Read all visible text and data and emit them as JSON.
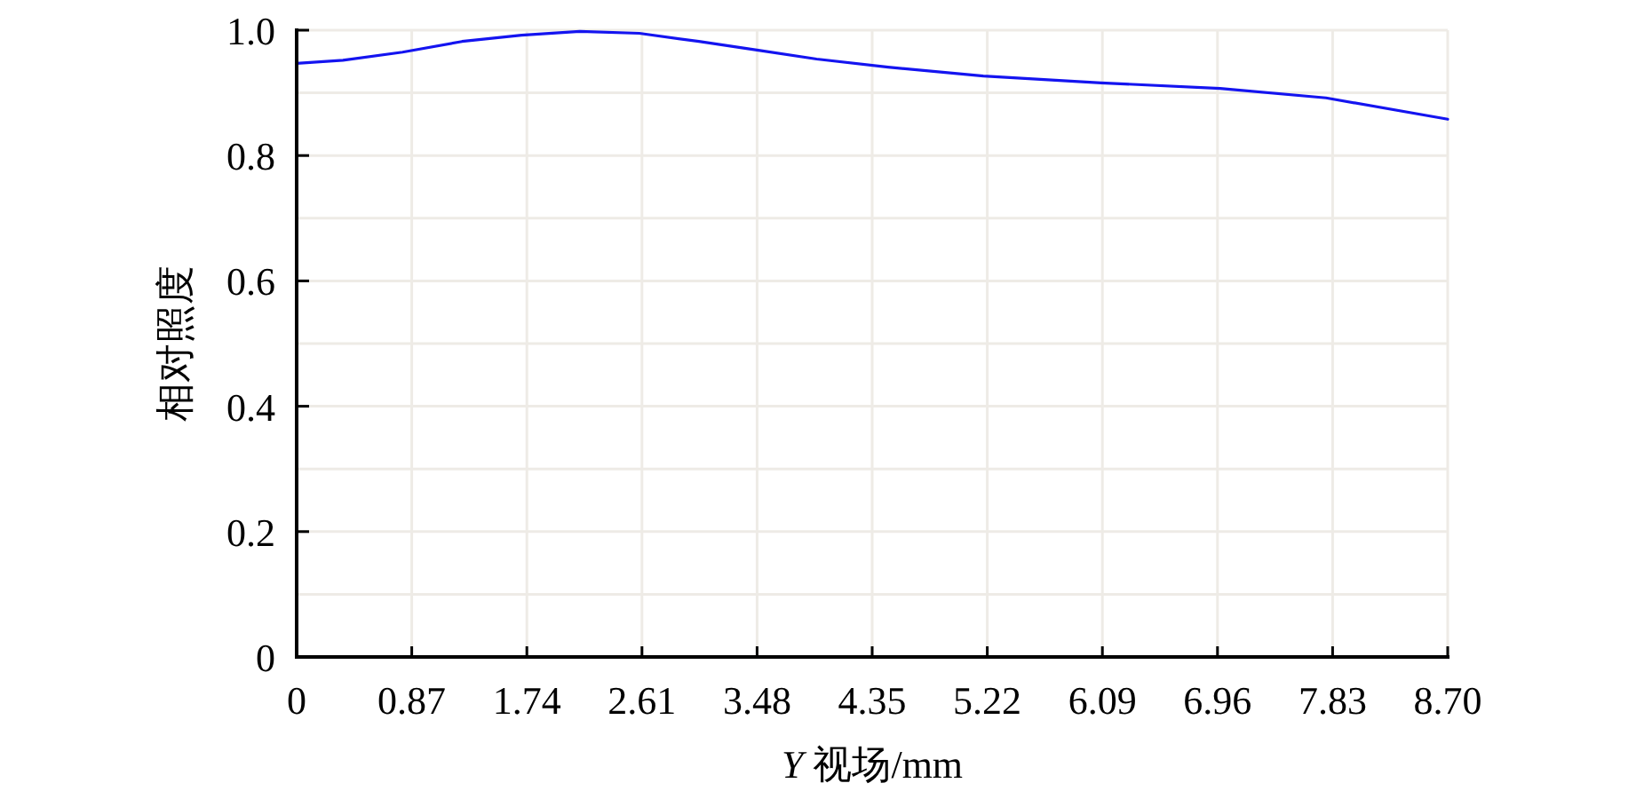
{
  "chart_data": {
    "type": "line",
    "xlabel": "*Y* 视场/mm",
    "ylabel": "相对照度",
    "x": [
      0,
      0.35,
      0.8,
      1.25,
      1.7,
      2.14,
      2.59,
      3.04,
      3.49,
      3.93,
      4.47,
      5.19,
      6.08,
      6.98,
      7.78,
      8.7
    ],
    "series": [
      {
        "color": "#1414f0",
        "values": [
          0.947,
          0.952,
          0.965,
          0.982,
          0.992,
          0.998,
          0.995,
          0.982,
          0.968,
          0.954,
          0.941,
          0.927,
          0.916,
          0.907,
          0.892,
          0.858
        ]
      }
    ],
    "xlim": [
      0,
      8.7
    ],
    "xticks": [
      0,
      0.87,
      1.74,
      2.61,
      3.48,
      4.35,
      5.22,
      6.09,
      6.96,
      7.83,
      {
        "value": 8.7,
        "label": "8.70"
      }
    ],
    "ylim": [
      0,
      1
    ],
    "yticks": [
      0,
      {
        "value": 0.1,
        "label": null
      },
      0.2,
      {
        "value": 0.3,
        "label": null
      },
      0.4,
      {
        "value": 0.5,
        "label": null
      },
      0.6,
      {
        "value": 0.7,
        "label": null
      },
      0.8,
      {
        "value": 0.9,
        "label": null
      },
      {
        "value": 1,
        "label": "1.0"
      }
    ],
    "grid": true,
    "marker": "none",
    "line_style": "solid"
  }
}
